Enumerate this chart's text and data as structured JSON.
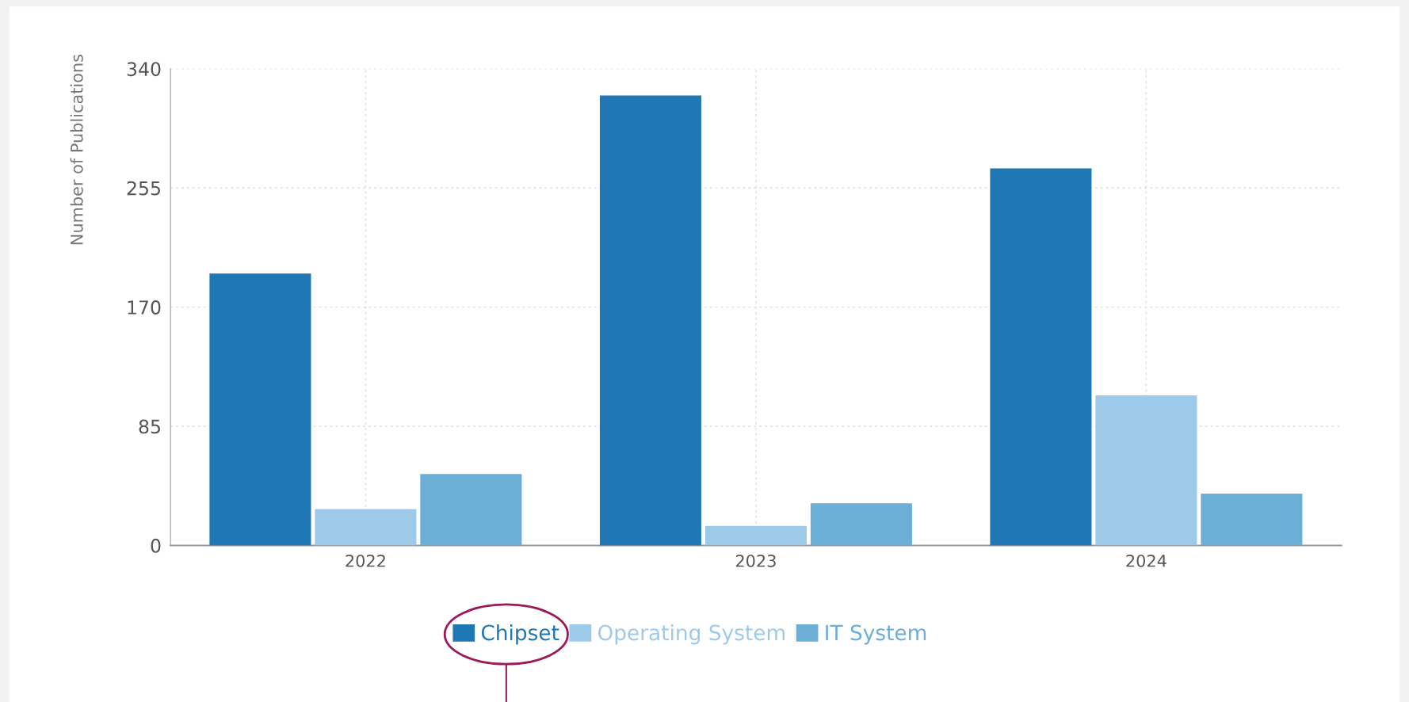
{
  "chart_data": {
    "type": "bar",
    "ylabel": "Number of Publications",
    "categories": [
      "2022",
      "2023",
      "2024"
    ],
    "series": [
      {
        "name": "Chipset",
        "color": "#1f77b4",
        "values": [
          194,
          321,
          269
        ]
      },
      {
        "name": "Operating System",
        "color": "#9ecae9",
        "values": [
          26,
          14,
          107
        ]
      },
      {
        "name": "IT System",
        "color": "#6baed6",
        "values": [
          51,
          30,
          37
        ]
      }
    ],
    "ylim": [
      0,
      340
    ],
    "yticks": [
      0,
      85,
      170,
      255,
      340
    ],
    "grid": true,
    "legend": "bottom"
  }
}
